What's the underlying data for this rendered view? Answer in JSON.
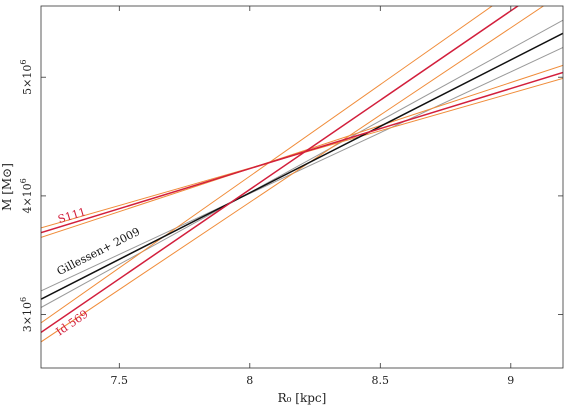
{
  "chart_data": {
    "type": "line",
    "xlabel": "R₀ [kpc]",
    "ylabel": "M [M⊙]",
    "xlim": [
      7.2,
      9.2
    ],
    "ylim": [
      2.55,
      5.6
    ],
    "ylim_units": "10^6 solar masses",
    "xticks": [
      {
        "value": 7.5,
        "label": "7.5"
      },
      {
        "value": 8,
        "label": "8"
      },
      {
        "value": 8.5,
        "label": "8.5"
      },
      {
        "value": 9,
        "label": "9"
      }
    ],
    "yticks": [
      {
        "value": 3,
        "mantissa": "3",
        "exponent": "6"
      },
      {
        "value": 4,
        "mantissa": "4",
        "exponent": "6"
      },
      {
        "value": 5,
        "mantissa": "5",
        "exponent": "6"
      }
    ],
    "grid": false,
    "series": [
      {
        "name": "Gillessen+ 2009",
        "color": "#111111",
        "role": "main",
        "x": [
          7.2,
          9.2
        ],
        "y": [
          3.13,
          5.37
        ]
      },
      {
        "color": "#9a9a9a",
        "role": "bound",
        "x": [
          7.2,
          9.2
        ],
        "y": [
          3.2,
          5.25
        ]
      },
      {
        "color": "#9a9a9a",
        "role": "bound",
        "x": [
          7.2,
          9.2
        ],
        "y": [
          3.06,
          5.48
        ]
      },
      {
        "name": "S111",
        "color": "#d21f3c",
        "role": "main",
        "x": [
          7.2,
          9.2
        ],
        "y": [
          3.69,
          5.04
        ]
      },
      {
        "color": "#f08c3a",
        "role": "bound",
        "x": [
          7.2,
          9.2
        ],
        "y": [
          3.73,
          4.99
        ]
      },
      {
        "color": "#f08c3a",
        "role": "bound",
        "x": [
          7.2,
          9.2
        ],
        "y": [
          3.65,
          5.1
        ]
      },
      {
        "name": "Id 569",
        "color": "#d21f3c",
        "role": "main",
        "x": [
          7.2,
          9.2
        ],
        "y": [
          2.85,
          5.86
        ]
      },
      {
        "color": "#f08c3a",
        "role": "bound",
        "x": [
          7.2,
          9.2
        ],
        "y": [
          2.93,
          6.02
        ]
      },
      {
        "color": "#f08c3a",
        "role": "bound",
        "x": [
          7.2,
          9.2
        ],
        "y": [
          2.77,
          5.71
        ]
      }
    ],
    "annotations": [
      {
        "text": "S111",
        "color": "#d21f3c",
        "x": 7.27,
        "y": 3.77
      },
      {
        "text": "Gillessen+ 2009",
        "color": "#111111",
        "x": 7.27,
        "y": 3.33
      },
      {
        "text": "Id 569",
        "color": "#d21f3c",
        "x": 7.27,
        "y": 2.82
      }
    ]
  }
}
